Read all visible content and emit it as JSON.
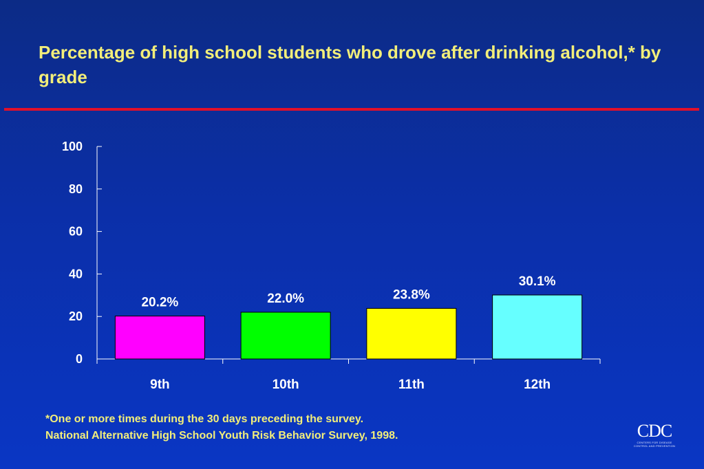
{
  "header": {
    "title": "Percentage of high school students who drove after drinking alcohol,* by grade"
  },
  "chart_data": {
    "type": "bar",
    "categories": [
      "9th",
      "10th",
      "11th",
      "12th"
    ],
    "values": [
      20.2,
      22.0,
      23.8,
      30.1
    ],
    "data_labels": [
      "20.2%",
      "22.0%",
      "23.8%",
      "30.1%"
    ],
    "ylim": [
      0,
      100
    ],
    "yticks": [
      0,
      20,
      40,
      60,
      80,
      100
    ],
    "colors": [
      "#ff00ff",
      "#00ff00",
      "#ffff00",
      "#66ffff"
    ],
    "grid": false,
    "legend": "none"
  },
  "footnote": {
    "line1": "*One or more times during the 30 days preceding the survey.",
    "line2": "National Alternative High School Youth Risk Behavior Survey, 1998."
  },
  "logo": {
    "text": "CDC",
    "subtext": "CENTERS FOR DISEASE CONTROL AND PREVENTION"
  }
}
